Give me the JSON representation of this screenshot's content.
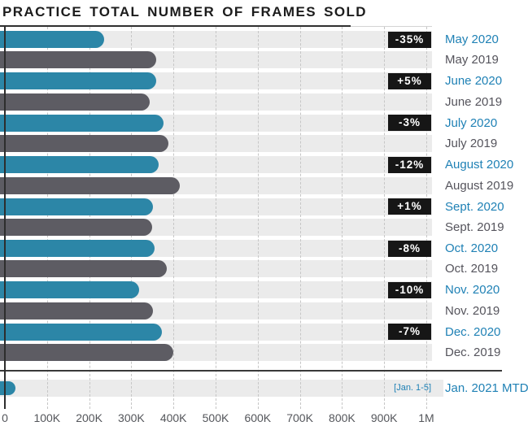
{
  "title": "PRACTICE TOTAL NUMBER OF FRAMES SOLD",
  "colors": {
    "bar_2020": "#2c86a7",
    "bar_2019": "#5d5c63",
    "label_2020": "#1f81b5",
    "label_2019": "#55545c",
    "row_track": "#ebebeb",
    "badge_bg": "#161616",
    "badge_text": "#ffffff",
    "grid_line": "#c6c6c6",
    "axis_text": "#54565b"
  },
  "chart_data": {
    "type": "bar",
    "orientation": "horizontal",
    "title": "PRACTICE TOTAL NUMBER OF FRAMES SOLD",
    "xlabel": "",
    "ylabel": "",
    "x_axis": {
      "min": 0,
      "max": 1000000,
      "ticks": [
        "0",
        "100K",
        "200K",
        "300K",
        "400K",
        "500K",
        "600K",
        "700K",
        "800K",
        "900K",
        "1M"
      ]
    },
    "grid": "dashed-vertical",
    "legend": "none",
    "series_names": [
      "2020",
      "2019"
    ],
    "groups": [
      {
        "label_2020": "May 2020",
        "label_2019": "May 2019",
        "value_2020": 235000,
        "value_2019": 360000,
        "change": "-35%"
      },
      {
        "label_2020": "June 2020",
        "label_2019": "June 2019",
        "value_2020": 360000,
        "value_2019": 343000,
        "change": "+5%"
      },
      {
        "label_2020": "July 2020",
        "label_2019": "July 2019",
        "value_2020": 377000,
        "value_2019": 388000,
        "change": "-3%"
      },
      {
        "label_2020": "August 2020",
        "label_2019": "August 2019",
        "value_2020": 365000,
        "value_2019": 415000,
        "change": "-12%"
      },
      {
        "label_2020": "Sept. 2020",
        "label_2019": "Sept. 2019",
        "value_2020": 352000,
        "value_2019": 349000,
        "change": "+1%"
      },
      {
        "label_2020": "Oct. 2020",
        "label_2019": "Oct. 2019",
        "value_2020": 355000,
        "value_2019": 385000,
        "change": "-8%"
      },
      {
        "label_2020": "Nov. 2020",
        "label_2019": "Nov. 2019",
        "value_2020": 318000,
        "value_2019": 352000,
        "change": "-10%"
      },
      {
        "label_2020": "Dec. 2020",
        "label_2019": "Dec. 2019",
        "value_2020": 372000,
        "value_2019": 400000,
        "change": "-7%"
      }
    ],
    "mtd": {
      "label": "Jan. 2021 MTD",
      "note": "[Jan. 1-5]",
      "value": 25000
    }
  }
}
